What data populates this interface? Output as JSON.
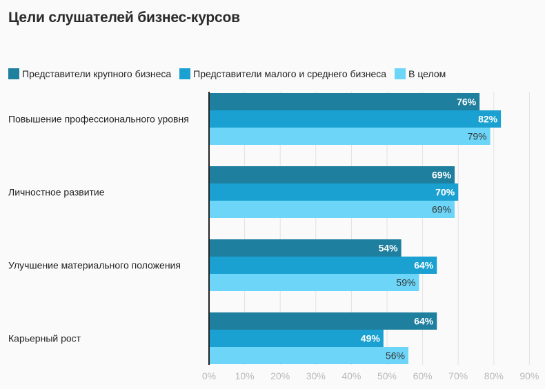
{
  "title": "Цели слушателей бизнес-курсов",
  "colors": {
    "series0": "#1f7f9f",
    "series1": "#1aa1d1",
    "series2": "#6dd6f8",
    "grid": "#e2e2e2",
    "axis": "#222222",
    "tick": "#b9b9b9"
  },
  "chart_data": {
    "type": "bar",
    "orientation": "horizontal",
    "title": "Цели слушателей бизнес-курсов",
    "categories": [
      "Повышение профессионального уровня",
      "Личностное развитие",
      "Улучшение материального положения",
      "Карьерный рост"
    ],
    "series": [
      {
        "name": "Представители крупного бизнеса",
        "values": [
          76,
          69,
          54,
          64
        ]
      },
      {
        "name": "Представители малого и среднего бизнеса",
        "values": [
          82,
          70,
          64,
          49
        ]
      },
      {
        "name": "В целом",
        "values": [
          79,
          69,
          59,
          56
        ]
      }
    ],
    "xlim": [
      0,
      90
    ],
    "xticks": [
      "0%",
      "10%",
      "20%",
      "30%",
      "40%",
      "50%",
      "60%",
      "70%",
      "80%",
      "90%"
    ],
    "value_suffix": "%",
    "grid": true,
    "legend": "top"
  }
}
